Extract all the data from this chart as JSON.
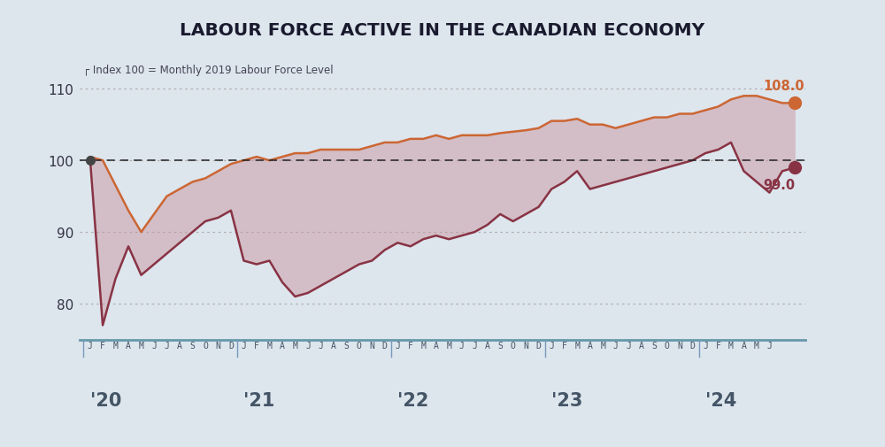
{
  "title": "LABOUR FORCE ACTIVE IN THE CANADIAN ECONOMY",
  "subtitle": "Index 100 = Monthly 2019 Labour Force Level",
  "background_color": "#dde5ed",
  "plot_bg_color": "#dde5ed",
  "upper_line_color": "#cc6633",
  "lower_line_color": "#883344",
  "fill_color": "#c8909a",
  "fill_alpha": 0.45,
  "reference_line_value": 100,
  "reference_line_color": "#222222",
  "grid_color": "#aaaaaa",
  "ylim": [
    75,
    115
  ],
  "yticks": [
    80,
    90,
    100,
    110
  ],
  "upper_end_value": "108.0",
  "lower_end_value": "99.0",
  "upper_series": [
    100.5,
    100.0,
    96.5,
    93.0,
    90.0,
    92.5,
    95.0,
    96.0,
    97.0,
    97.5,
    98.5,
    99.5,
    100.0,
    100.5,
    100.0,
    100.5,
    101.0,
    101.0,
    101.5,
    101.5,
    101.5,
    101.5,
    102.0,
    102.5,
    102.5,
    103.0,
    103.0,
    103.5,
    103.0,
    103.5,
    103.5,
    103.5,
    103.8,
    104.0,
    104.2,
    104.5,
    105.5,
    105.5,
    105.8,
    105.0,
    105.0,
    104.5,
    105.0,
    105.5,
    106.0,
    106.0,
    106.5,
    106.5,
    107.0,
    107.5,
    108.5,
    109.0,
    109.0,
    108.5,
    108.0,
    108.0
  ],
  "lower_series": [
    100.5,
    77.0,
    83.5,
    88.0,
    84.0,
    85.5,
    87.0,
    88.5,
    90.0,
    91.5,
    92.0,
    93.0,
    86.0,
    85.5,
    86.0,
    83.0,
    81.0,
    81.5,
    82.5,
    83.5,
    84.5,
    85.5,
    86.0,
    87.5,
    88.5,
    88.0,
    89.0,
    89.5,
    89.0,
    89.5,
    90.0,
    91.0,
    92.5,
    91.5,
    92.5,
    93.5,
    96.0,
    97.0,
    98.5,
    96.0,
    96.5,
    97.0,
    97.5,
    98.0,
    98.5,
    99.0,
    99.5,
    100.0,
    101.0,
    101.5,
    102.5,
    98.5,
    97.0,
    95.5,
    98.5,
    99.0
  ],
  "month_letters": [
    "J",
    "F",
    "M",
    "A",
    "M",
    "J",
    "J",
    "A",
    "S",
    "O",
    "N",
    "D"
  ],
  "n_months_2024": 6,
  "year_labels": [
    "'20",
    "'21",
    "'22",
    "'23",
    "'24"
  ],
  "year_start_indices": [
    0,
    12,
    24,
    36,
    48
  ]
}
